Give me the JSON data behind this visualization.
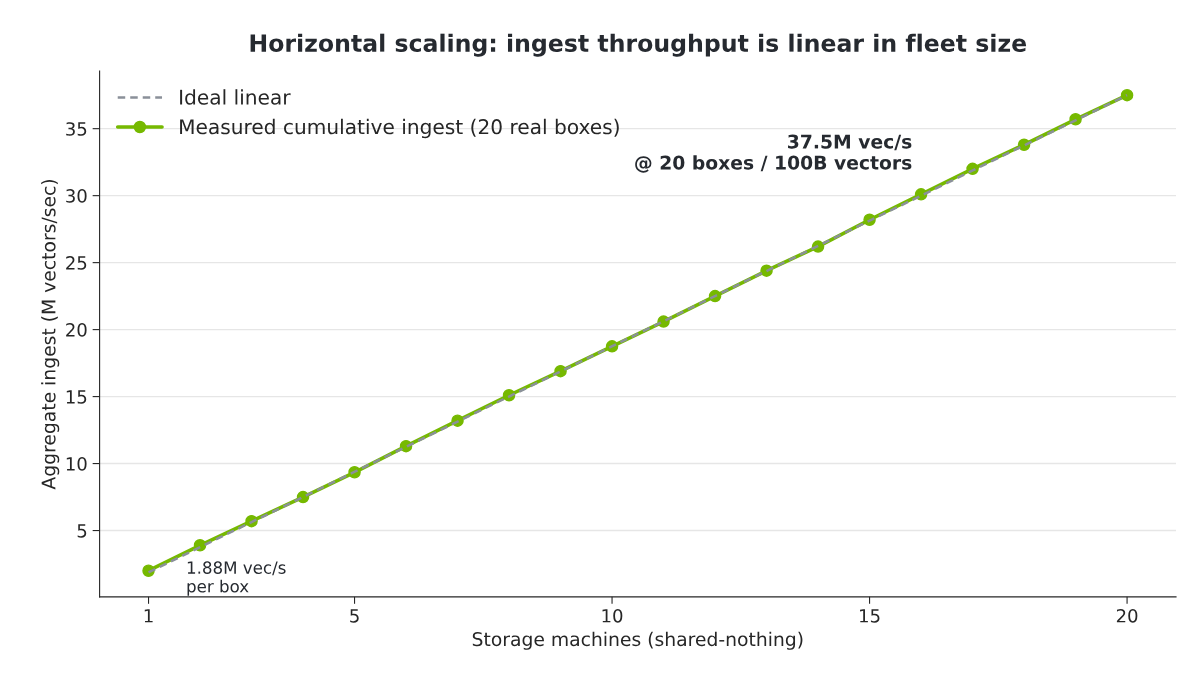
{
  "chart_data": {
    "type": "line",
    "title": "Horizontal scaling: ingest throughput is linear in fleet size",
    "xlabel": "Storage machines (shared-nothing)",
    "ylabel": "Aggregate ingest (M vectors/sec)",
    "series": [
      {
        "name": "Ideal linear",
        "type": "line",
        "color": "#8a9099",
        "line_style": "dashed",
        "marker": "none",
        "x": [
          1,
          20
        ],
        "values": [
          1.88,
          37.5
        ]
      },
      {
        "name": "Measured cumulative ingest (20 real boxes)",
        "type": "line",
        "color": "#76b900",
        "line_style": "solid",
        "marker": "circle",
        "x": [
          1,
          2,
          3,
          4,
          5,
          6,
          7,
          8,
          9,
          10,
          11,
          12,
          13,
          14,
          15,
          16,
          17,
          18,
          19,
          20
        ],
        "values": [
          2.0,
          3.9,
          5.7,
          7.5,
          9.35,
          11.3,
          13.2,
          15.1,
          16.9,
          18.75,
          20.6,
          22.5,
          24.4,
          26.2,
          28.2,
          30.1,
          32.0,
          33.8,
          35.7,
          37.5
        ]
      }
    ],
    "xlim": [
      0.05,
      20.95
    ],
    "xticks": [
      1,
      5,
      10,
      15,
      20
    ],
    "ylim": [
      0.05,
      39.3
    ],
    "yticks": [
      5,
      10,
      15,
      20,
      25,
      30,
      35
    ],
    "grid": "y",
    "legend": "top left",
    "annotations": [
      "37.5M vec/s\n@ 20 boxes / 100B vectors",
      {
        "text": "1.88M vec/s\nper box",
        "x": 1,
        "y": 2.0
      }
    ]
  }
}
